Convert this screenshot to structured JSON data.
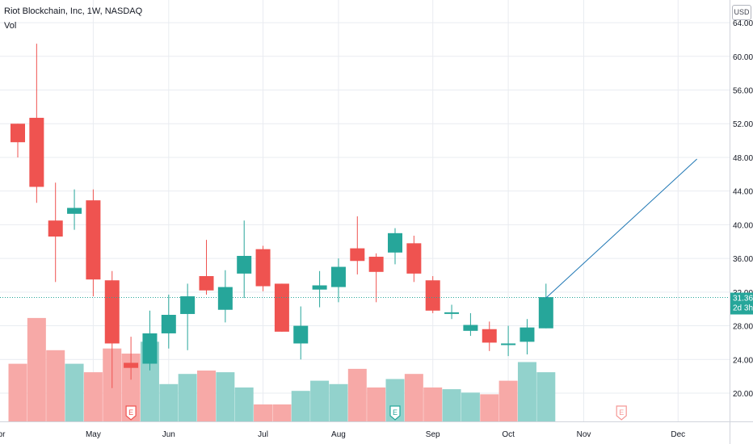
{
  "header": {
    "title": "Riot Blockchain, Inc, 1W, NASDAQ",
    "volume_label": "Vol",
    "currency_button": "USD"
  },
  "price_tag": {
    "value": "31.36",
    "countdown": "2d 3h"
  },
  "colors": {
    "up": "#26a69a",
    "down": "#ef5350",
    "up_volume": "#92d2cc",
    "down_volume": "#f7a9a7",
    "grid": "#e9ecf1",
    "axis_text": "#131722",
    "trend_line": "#2962ff",
    "price_line": "#26a69a",
    "earnings_down": "#ef5350",
    "earnings_up": "#26a69a"
  },
  "chart_data": {
    "type": "candlestick",
    "title": "Riot Blockchain, Inc, 1W, NASDAQ",
    "timeframe": "1W",
    "y_axis_ticks": [
      "64.00",
      "60.00",
      "56.00",
      "52.00",
      "48.00",
      "44.00",
      "40.00",
      "36.00",
      "32.00",
      "28.00",
      "24.00",
      "20.00"
    ],
    "ylim": [
      16.5,
      65
    ],
    "x_axis_labels": [
      "Apr",
      "May",
      "Jun",
      "Jul",
      "Aug",
      "Sep",
      "Oct",
      "Nov",
      "Dec"
    ],
    "x_axis_label_weeks": [
      -1,
      4,
      8,
      13,
      17,
      22,
      26,
      30,
      35
    ],
    "candles": [
      {
        "week": 0,
        "open": 52.0,
        "high": 52.0,
        "low": 48.0,
        "close": 49.8
      },
      {
        "week": 1,
        "open": 52.7,
        "high": 61.5,
        "low": 42.6,
        "close": 44.5
      },
      {
        "week": 2,
        "open": 40.5,
        "high": 45.0,
        "low": 33.2,
        "close": 38.6
      },
      {
        "week": 3,
        "open": 41.3,
        "high": 44.2,
        "low": 39.4,
        "close": 42.0
      },
      {
        "week": 4,
        "open": 42.9,
        "high": 44.2,
        "low": 31.5,
        "close": 33.5
      },
      {
        "week": 5,
        "open": 33.4,
        "high": 34.5,
        "low": 20.6,
        "close": 25.9
      },
      {
        "week": 6,
        "open": 23.6,
        "high": 26.7,
        "low": 21.6,
        "close": 23.0
      },
      {
        "week": 7,
        "open": 23.5,
        "high": 29.8,
        "low": 22.7,
        "close": 27.1
      },
      {
        "week": 8,
        "open": 27.1,
        "high": 31.7,
        "low": 25.3,
        "close": 29.3
      },
      {
        "week": 9,
        "open": 29.4,
        "high": 33.0,
        "low": 25.1,
        "close": 31.5
      },
      {
        "week": 10,
        "open": 33.9,
        "high": 38.2,
        "low": 31.7,
        "close": 32.2
      },
      {
        "week": 11,
        "open": 29.9,
        "high": 34.6,
        "low": 28.4,
        "close": 32.6
      },
      {
        "week": 12,
        "open": 34.2,
        "high": 40.5,
        "low": 31.3,
        "close": 36.3
      },
      {
        "week": 13,
        "open": 37.1,
        "high": 37.5,
        "low": 32.1,
        "close": 32.7
      },
      {
        "week": 14,
        "open": 33.0,
        "high": 33.0,
        "low": 27.3,
        "close": 27.3
      },
      {
        "week": 15,
        "open": 25.9,
        "high": 30.3,
        "low": 24.0,
        "close": 28.0
      },
      {
        "week": 16,
        "open": 32.3,
        "high": 34.5,
        "low": 30.2,
        "close": 32.8
      },
      {
        "week": 17,
        "open": 32.6,
        "high": 36.0,
        "low": 30.8,
        "close": 35.0
      },
      {
        "week": 18,
        "open": 37.2,
        "high": 41.0,
        "low": 34.1,
        "close": 35.7
      },
      {
        "week": 19,
        "open": 36.2,
        "high": 36.6,
        "low": 30.8,
        "close": 34.4
      },
      {
        "week": 20,
        "open": 36.7,
        "high": 39.6,
        "low": 35.3,
        "close": 39.0
      },
      {
        "week": 21,
        "open": 37.8,
        "high": 38.7,
        "low": 33.2,
        "close": 34.2
      },
      {
        "week": 22,
        "open": 33.4,
        "high": 33.9,
        "low": 29.5,
        "close": 29.8
      },
      {
        "week": 23,
        "open": 29.5,
        "high": 30.5,
        "low": 28.8,
        "close": 29.6
      },
      {
        "week": 24,
        "open": 27.4,
        "high": 29.5,
        "low": 26.8,
        "close": 28.1
      },
      {
        "week": 25,
        "open": 27.6,
        "high": 28.5,
        "low": 25.0,
        "close": 26.0
      },
      {
        "week": 26,
        "open": 25.9,
        "high": 28.0,
        "low": 24.4,
        "close": 25.9
      },
      {
        "week": 27,
        "open": 26.1,
        "high": 28.8,
        "low": 24.6,
        "close": 27.8
      },
      {
        "week": 28,
        "open": 27.7,
        "high": 33.0,
        "low": 27.7,
        "close": 31.4
      }
    ],
    "volume": {
      "note": "relative bar heights (no volume scale printed)",
      "weeks": [
        0,
        1,
        2,
        3,
        4,
        5,
        6,
        7,
        8,
        9,
        10,
        11,
        12,
        13,
        14,
        15,
        16,
        17,
        18,
        19,
        20,
        21,
        22,
        23,
        24,
        25,
        26,
        27,
        28
      ],
      "values": [
        34,
        61,
        42,
        34,
        29,
        43,
        40,
        47,
        22,
        28,
        30,
        29,
        20,
        10,
        10,
        18,
        24,
        22,
        31,
        20,
        25,
        28,
        20,
        19,
        17,
        16,
        24,
        35,
        29
      ],
      "direction": [
        "down",
        "down",
        "down",
        "up",
        "down",
        "down",
        "down",
        "up",
        "up",
        "up",
        "down",
        "up",
        "up",
        "down",
        "down",
        "up",
        "up",
        "up",
        "down",
        "down",
        "up",
        "down",
        "down",
        "up",
        "up",
        "down",
        "down",
        "up",
        "up"
      ]
    },
    "earnings_markers": [
      {
        "week": 6,
        "label": "E",
        "direction": "down"
      },
      {
        "week": 20,
        "label": "E",
        "direction": "up"
      },
      {
        "week": 32,
        "label": "E",
        "direction": "down",
        "future": true
      }
    ],
    "trend_line": {
      "start": {
        "week": 28,
        "price": 31.3
      },
      "end": {
        "week": 36,
        "price": 47.8
      }
    },
    "last_price": 31.36
  }
}
